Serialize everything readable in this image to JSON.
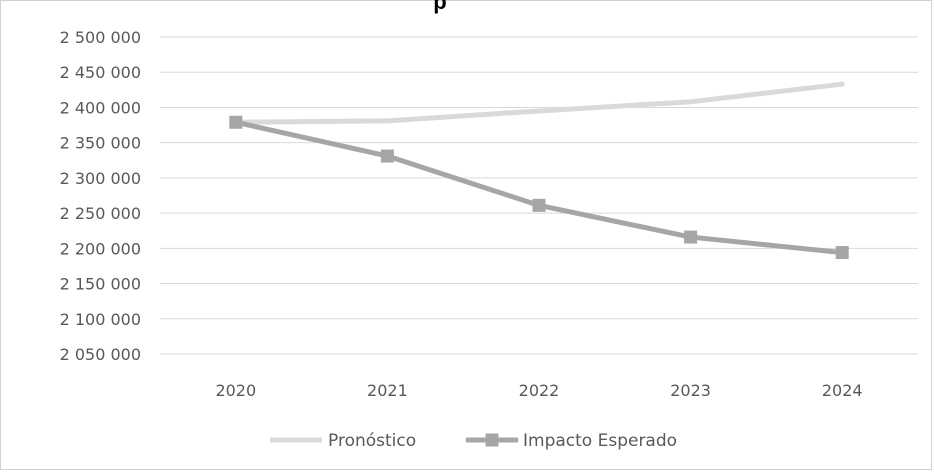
{
  "chart_data": {
    "type": "line",
    "title": "p",
    "categories": [
      "2020",
      "2021",
      "2022",
      "2023",
      "2024"
    ],
    "ylim": [
      2050000,
      2500000
    ],
    "yticks": [
      2050000,
      2100000,
      2150000,
      2200000,
      2250000,
      2300000,
      2350000,
      2400000,
      2450000,
      2500000
    ],
    "ytick_labels": [
      "2 050 000",
      "2 100 000",
      "2 150 000",
      "2 200 000",
      "2 250 000",
      "2 300 000",
      "2 350 000",
      "2 400 000",
      "2 450 000",
      "2 500 000"
    ],
    "grid": true,
    "legend_position": "bottom",
    "series": [
      {
        "name": "Pronóstico",
        "values": [
          2379000,
          2381000,
          2395000,
          2408000,
          2433000
        ],
        "color": "#d9d9d9",
        "marker": "none"
      },
      {
        "name": "Impacto Esperado",
        "values": [
          2379000,
          2331000,
          2261000,
          2216000,
          2194000
        ],
        "color": "#a6a6a6",
        "marker": "square"
      }
    ]
  }
}
